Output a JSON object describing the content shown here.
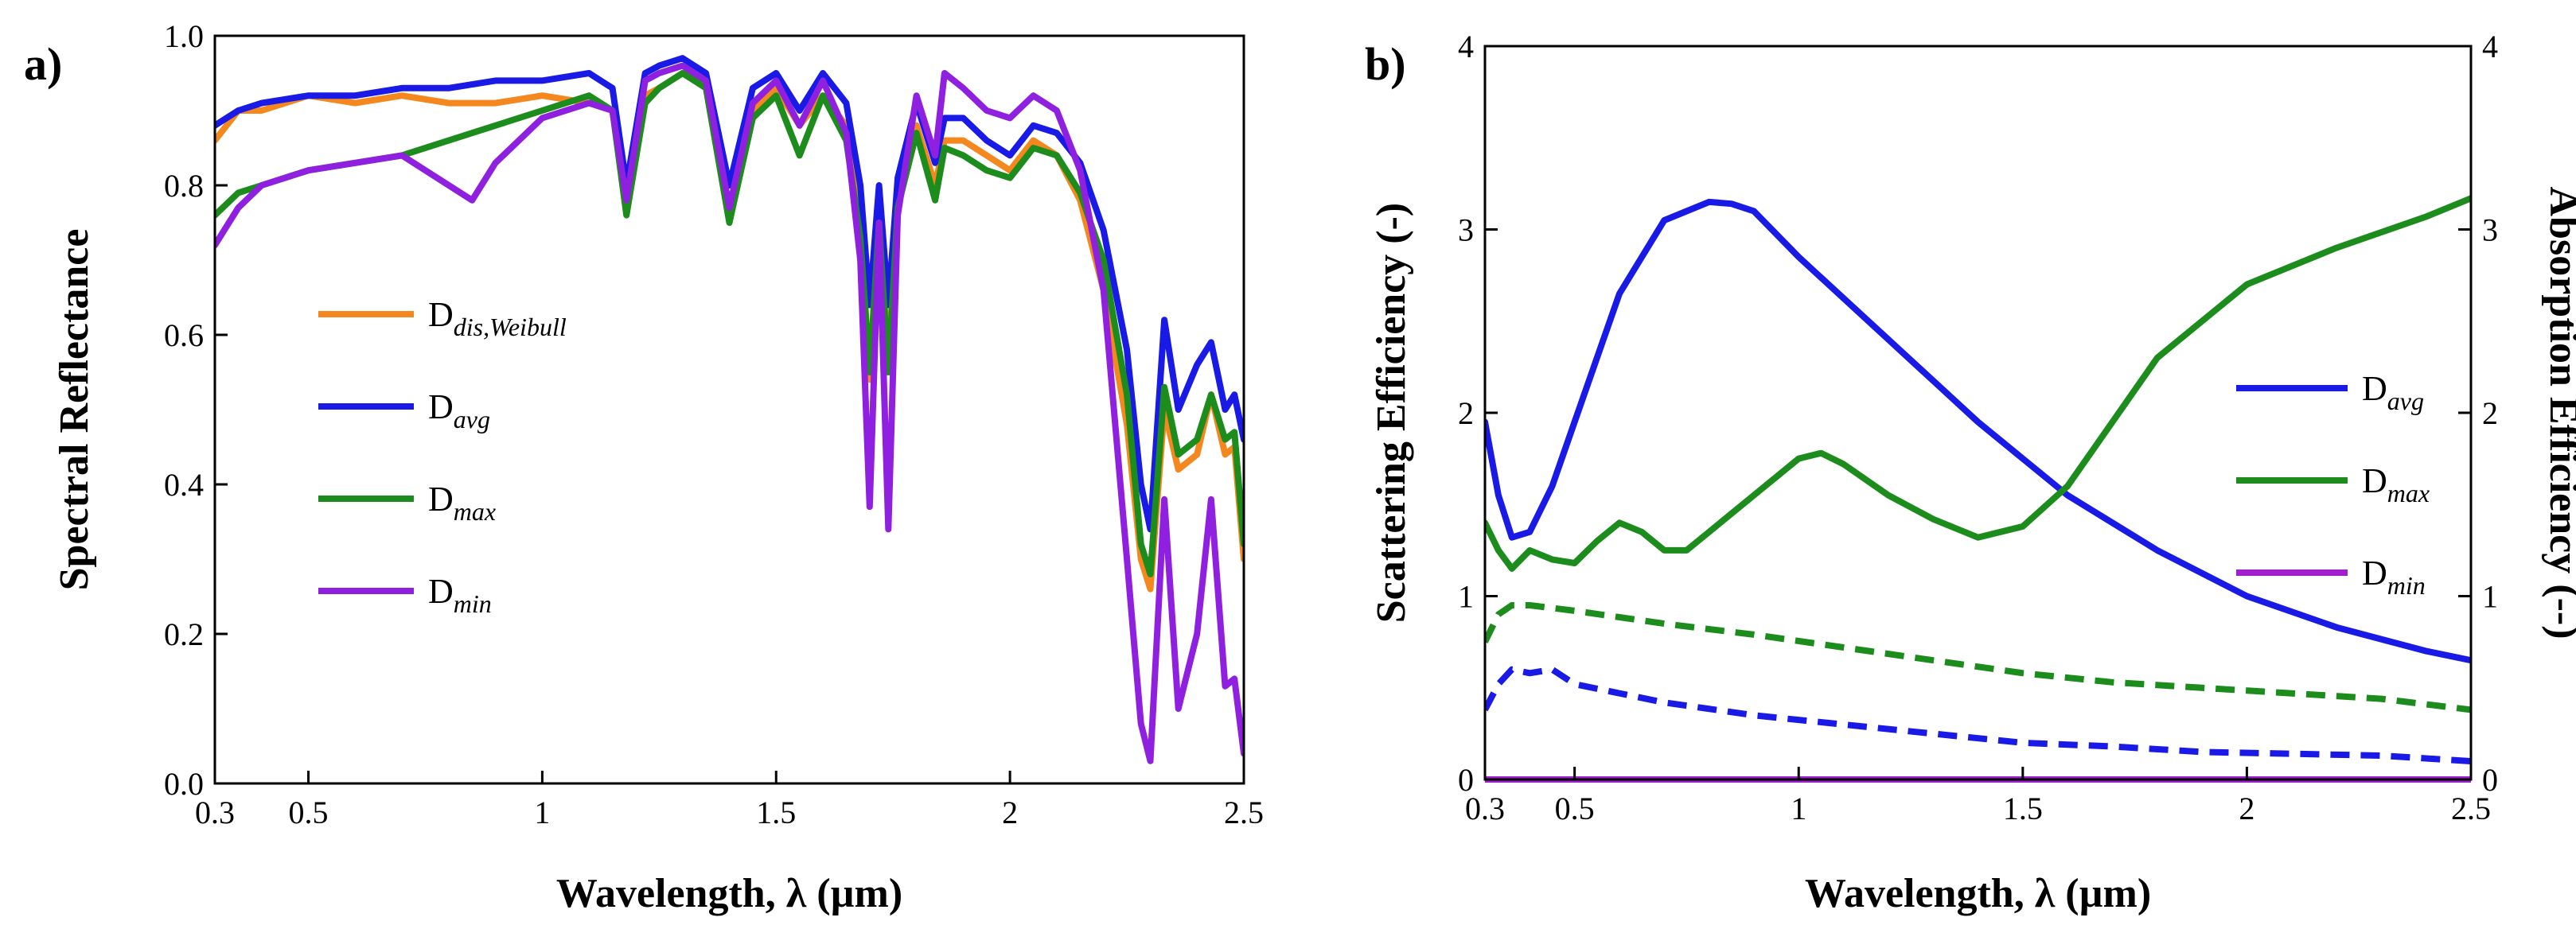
{
  "chart_data": [
    {
      "panel": "a)",
      "type": "line",
      "xlabel": "Wavelength, λ (µm)",
      "ylabel": "Spectral Reflectance",
      "xlim": [
        0.3,
        2.5
      ],
      "ylim": [
        0.0,
        1.0
      ],
      "xticks": [
        0.3,
        0.5,
        1,
        1.5,
        2,
        2.5
      ],
      "xtick_labels": [
        "0.3",
        "0.5",
        "1",
        "1.5",
        "2",
        "2.5"
      ],
      "yticks": [
        0.0,
        0.2,
        0.4,
        0.6,
        0.8,
        1.0
      ],
      "ytick_labels": [
        "0.0",
        "0.2",
        "0.4",
        "0.6",
        "0.8",
        "1.0"
      ],
      "legend_position": "center-left",
      "series": [
        {
          "name": "D",
          "name_sub": "dis,Weibull",
          "color": "#f5871f",
          "x": [
            0.3,
            0.35,
            0.4,
            0.5,
            0.6,
            0.7,
            0.8,
            0.9,
            1.0,
            1.1,
            1.15,
            1.18,
            1.22,
            1.25,
            1.3,
            1.35,
            1.4,
            1.45,
            1.5,
            1.55,
            1.6,
            1.65,
            1.68,
            1.7,
            1.72,
            1.74,
            1.76,
            1.8,
            1.84,
            1.86,
            1.9,
            1.95,
            2.0,
            2.05,
            2.1,
            2.15,
            2.2,
            2.25,
            2.28,
            2.3,
            2.33,
            2.36,
            2.4,
            2.43,
            2.46,
            2.48,
            2.5
          ],
          "y": [
            0.86,
            0.9,
            0.9,
            0.92,
            0.91,
            0.92,
            0.91,
            0.91,
            0.92,
            0.91,
            0.9,
            0.78,
            0.92,
            0.93,
            0.95,
            0.94,
            0.77,
            0.9,
            0.93,
            0.88,
            0.92,
            0.88,
            0.75,
            0.54,
            0.76,
            0.56,
            0.78,
            0.88,
            0.8,
            0.86,
            0.86,
            0.84,
            0.82,
            0.86,
            0.84,
            0.78,
            0.66,
            0.48,
            0.3,
            0.26,
            0.5,
            0.42,
            0.44,
            0.52,
            0.44,
            0.45,
            0.3
          ]
        },
        {
          "name": "D",
          "name_sub": "avg",
          "color": "#1a1ae6",
          "x": [
            0.3,
            0.35,
            0.4,
            0.5,
            0.6,
            0.7,
            0.8,
            0.9,
            1.0,
            1.1,
            1.15,
            1.18,
            1.22,
            1.25,
            1.3,
            1.35,
            1.4,
            1.45,
            1.5,
            1.55,
            1.6,
            1.65,
            1.68,
            1.7,
            1.72,
            1.74,
            1.76,
            1.8,
            1.84,
            1.86,
            1.9,
            1.95,
            2.0,
            2.05,
            2.1,
            2.15,
            2.2,
            2.25,
            2.28,
            2.3,
            2.33,
            2.36,
            2.4,
            2.43,
            2.46,
            2.48,
            2.5
          ],
          "y": [
            0.88,
            0.9,
            0.91,
            0.92,
            0.92,
            0.93,
            0.93,
            0.94,
            0.94,
            0.95,
            0.93,
            0.8,
            0.95,
            0.96,
            0.97,
            0.95,
            0.8,
            0.93,
            0.95,
            0.9,
            0.95,
            0.91,
            0.8,
            0.64,
            0.8,
            0.64,
            0.81,
            0.91,
            0.83,
            0.89,
            0.89,
            0.86,
            0.84,
            0.88,
            0.87,
            0.83,
            0.74,
            0.58,
            0.4,
            0.34,
            0.62,
            0.5,
            0.56,
            0.59,
            0.5,
            0.52,
            0.46
          ]
        },
        {
          "name": "D",
          "name_sub": "max",
          "color": "#1c8c1c",
          "x": [
            0.3,
            0.35,
            0.4,
            0.5,
            0.6,
            0.7,
            0.8,
            0.9,
            1.0,
            1.1,
            1.15,
            1.18,
            1.22,
            1.25,
            1.3,
            1.35,
            1.4,
            1.45,
            1.5,
            1.55,
            1.6,
            1.65,
            1.68,
            1.7,
            1.72,
            1.74,
            1.76,
            1.8,
            1.84,
            1.86,
            1.9,
            1.95,
            2.0,
            2.05,
            2.1,
            2.15,
            2.2,
            2.25,
            2.28,
            2.3,
            2.33,
            2.36,
            2.4,
            2.43,
            2.46,
            2.48,
            2.5
          ],
          "y": [
            0.76,
            0.79,
            0.8,
            0.82,
            0.83,
            0.84,
            0.86,
            0.88,
            0.9,
            0.92,
            0.9,
            0.76,
            0.91,
            0.93,
            0.95,
            0.93,
            0.75,
            0.89,
            0.92,
            0.84,
            0.92,
            0.86,
            0.73,
            0.55,
            0.75,
            0.55,
            0.77,
            0.87,
            0.78,
            0.85,
            0.84,
            0.82,
            0.81,
            0.85,
            0.84,
            0.79,
            0.7,
            0.52,
            0.32,
            0.28,
            0.53,
            0.44,
            0.46,
            0.52,
            0.46,
            0.47,
            0.32
          ]
        },
        {
          "name": "D",
          "name_sub": "min",
          "color": "#9020e0",
          "x": [
            0.3,
            0.35,
            0.4,
            0.5,
            0.6,
            0.7,
            0.8,
            0.85,
            0.9,
            1.0,
            1.1,
            1.15,
            1.18,
            1.22,
            1.25,
            1.3,
            1.35,
            1.4,
            1.45,
            1.5,
            1.55,
            1.6,
            1.65,
            1.68,
            1.7,
            1.72,
            1.74,
            1.76,
            1.8,
            1.84,
            1.86,
            1.9,
            1.95,
            2.0,
            2.05,
            2.1,
            2.15,
            2.2,
            2.25,
            2.28,
            2.3,
            2.33,
            2.36,
            2.4,
            2.43,
            2.46,
            2.48,
            2.5
          ],
          "y": [
            0.72,
            0.77,
            0.8,
            0.82,
            0.83,
            0.84,
            0.8,
            0.78,
            0.83,
            0.89,
            0.91,
            0.9,
            0.78,
            0.94,
            0.95,
            0.96,
            0.94,
            0.77,
            0.91,
            0.94,
            0.88,
            0.94,
            0.87,
            0.7,
            0.37,
            0.75,
            0.34,
            0.76,
            0.92,
            0.84,
            0.95,
            0.93,
            0.9,
            0.89,
            0.92,
            0.9,
            0.82,
            0.66,
            0.3,
            0.08,
            0.03,
            0.38,
            0.1,
            0.2,
            0.38,
            0.13,
            0.14,
            0.04
          ]
        }
      ]
    },
    {
      "panel": "b)",
      "type": "line",
      "xlabel": "Wavelength, λ (µm)",
      "ylabel": "Scattering Efficiency (-)",
      "y2label": "Absorption Efficiency (--)",
      "xlim": [
        0.3,
        2.5
      ],
      "ylim": [
        0,
        4
      ],
      "y2lim": [
        0,
        4
      ],
      "xticks": [
        0.3,
        0.5,
        1,
        1.5,
        2,
        2.5
      ],
      "xtick_labels": [
        "0.3",
        "0.5",
        "1",
        "1.5",
        "2",
        "2.5"
      ],
      "yticks": [
        0,
        1,
        2,
        3,
        4
      ],
      "ytick_labels": [
        "0",
        "1",
        "2",
        "3",
        "4"
      ],
      "legend_position": "center-right",
      "series": [
        {
          "name": "D",
          "name_sub": "avg",
          "color": "#1a1ae6",
          "style": "solid",
          "axis": "left",
          "x": [
            0.3,
            0.33,
            0.36,
            0.4,
            0.45,
            0.5,
            0.6,
            0.7,
            0.8,
            0.85,
            0.9,
            1.0,
            1.2,
            1.4,
            1.6,
            1.8,
            2.0,
            2.2,
            2.4,
            2.5
          ],
          "y": [
            1.95,
            1.55,
            1.32,
            1.35,
            1.6,
            1.95,
            2.65,
            3.05,
            3.15,
            3.14,
            3.1,
            2.85,
            2.4,
            1.95,
            1.55,
            1.25,
            1.0,
            0.83,
            0.7,
            0.65
          ]
        },
        {
          "name": "D",
          "name_sub": "max",
          "color": "#1c8c1c",
          "style": "solid",
          "axis": "left",
          "x": [
            0.3,
            0.33,
            0.36,
            0.4,
            0.45,
            0.5,
            0.55,
            0.6,
            0.65,
            0.7,
            0.75,
            0.8,
            0.9,
            1.0,
            1.05,
            1.1,
            1.2,
            1.3,
            1.4,
            1.5,
            1.6,
            1.7,
            1.8,
            2.0,
            2.2,
            2.4,
            2.5
          ],
          "y": [
            1.4,
            1.25,
            1.15,
            1.25,
            1.2,
            1.18,
            1.3,
            1.4,
            1.35,
            1.25,
            1.25,
            1.35,
            1.55,
            1.75,
            1.78,
            1.72,
            1.55,
            1.42,
            1.32,
            1.38,
            1.6,
            1.95,
            2.3,
            2.7,
            2.9,
            3.07,
            3.17
          ]
        },
        {
          "name": "D",
          "name_sub": "min",
          "color": "#a020d0",
          "style": "solid",
          "axis": "left",
          "x": [
            0.3,
            2.5
          ],
          "y": [
            0.0,
            0.0
          ]
        },
        {
          "name": "",
          "color": "#1c8c1c",
          "style": "dashed",
          "axis": "right",
          "x": [
            0.3,
            0.33,
            0.36,
            0.4,
            0.5,
            0.7,
            0.9,
            1.1,
            1.3,
            1.5,
            1.7,
            1.9,
            2.1,
            2.3,
            2.5
          ],
          "y": [
            0.75,
            0.9,
            0.95,
            0.95,
            0.92,
            0.85,
            0.79,
            0.72,
            0.65,
            0.58,
            0.53,
            0.5,
            0.47,
            0.44,
            0.38
          ]
        },
        {
          "name": "",
          "color": "#1a1ae6",
          "style": "dashed",
          "axis": "right",
          "x": [
            0.3,
            0.33,
            0.36,
            0.4,
            0.45,
            0.5,
            0.7,
            0.9,
            1.1,
            1.3,
            1.5,
            1.7,
            1.9,
            2.1,
            2.3,
            2.5
          ],
          "y": [
            0.38,
            0.52,
            0.6,
            0.58,
            0.6,
            0.52,
            0.42,
            0.35,
            0.3,
            0.25,
            0.2,
            0.18,
            0.15,
            0.14,
            0.13,
            0.1
          ]
        }
      ]
    }
  ]
}
